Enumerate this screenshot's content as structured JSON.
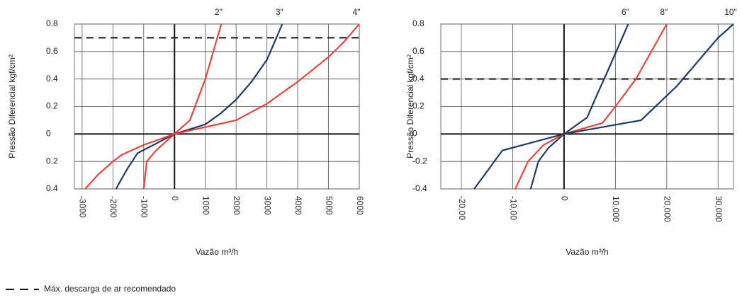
{
  "chart_data": [
    {
      "type": "line",
      "x_label": "Vazão m³/h",
      "y_label": "Pressão Diferencial kgf/cm²",
      "xlim": [
        -3250,
        6000
      ],
      "xticks": [
        -3000,
        -2000,
        -1000,
        0,
        1000,
        2000,
        3000,
        4000,
        5000,
        6000
      ],
      "ylim": [
        -0.4,
        0.8
      ],
      "yticks": [
        0.8,
        0.6,
        0.4,
        0.2,
        0,
        {
          "value": -0.2,
          "label": "0.2"
        },
        {
          "value": -0.4,
          "label": "0.4"
        }
      ],
      "reference_line": 0.7,
      "grid": true,
      "series": [
        {
          "name": "2\"",
          "color": "#e8453a",
          "x": [
            -1000,
            -900,
            -600,
            0,
            500,
            1000,
            1520
          ],
          "values": [
            -0.4,
            -0.2,
            -0.12,
            0,
            0.1,
            0.4,
            0.8
          ]
        },
        {
          "name": "3\"",
          "color": "#1e3a66",
          "x": [
            -1900,
            -1550,
            -1200,
            -600,
            0,
            1000,
            1500,
            2000,
            2500,
            3000,
            3500
          ],
          "values": [
            -0.4,
            -0.26,
            -0.14,
            -0.07,
            0,
            0.07,
            0.15,
            0.25,
            0.38,
            0.54,
            0.8
          ]
        },
        {
          "name": "4\"",
          "color": "#e8453a",
          "x": [
            -2900,
            -2500,
            -2000,
            -1700,
            -1000,
            0,
            1000,
            2000,
            3000,
            4000,
            5000,
            5500,
            6000
          ],
          "values": [
            -0.4,
            -0.3,
            -0.2,
            -0.15,
            -0.08,
            0,
            0.05,
            0.1,
            0.22,
            0.38,
            0.56,
            0.67,
            0.8
          ]
        }
      ]
    },
    {
      "type": "line",
      "x_label": "Vazão m³/h",
      "y_label": "Pressão Diferencial kgf/cm²",
      "xlim": [
        -24000,
        33000
      ],
      "xticks": [
        {
          "value": -20000,
          "label": "-20,00"
        },
        {
          "value": -10000,
          "label": "-10,00"
        },
        0,
        {
          "value": 10000,
          "label": "10,000"
        },
        {
          "value": 20000,
          "label": "20,000"
        },
        {
          "value": 30000,
          "label": "30,000"
        }
      ],
      "ylim": [
        -0.4,
        0.8
      ],
      "yticks": [
        0.8,
        0.6,
        0.4,
        0.2,
        0,
        -0.2,
        -0.4
      ],
      "reference_line": 0.4,
      "grid": true,
      "series": [
        {
          "name": "6\"",
          "color": "#1e3a66",
          "x": [
            -6500,
            -5000,
            -3000,
            0,
            4500,
            6000,
            9000,
            12500
          ],
          "values": [
            -0.4,
            -0.2,
            -0.1,
            0,
            0.12,
            0.25,
            0.5,
            0.8
          ]
        },
        {
          "name": "8\"",
          "color": "#e8453a",
          "x": [
            -9500,
            -7000,
            -4000,
            0,
            7500,
            10000,
            14000,
            20000
          ],
          "values": [
            -0.4,
            -0.2,
            -0.08,
            0,
            0.08,
            0.2,
            0.4,
            0.8
          ]
        },
        {
          "name": "10\"",
          "color": "#1e3a66",
          "x": [
            -17500,
            -12000,
            0,
            15000,
            22000,
            30000,
            33000
          ],
          "values": [
            -0.4,
            -0.12,
            0,
            0.1,
            0.35,
            0.7,
            0.8
          ]
        }
      ]
    }
  ],
  "legend": {
    "label": "Máx. descarga de ar recomendado"
  }
}
